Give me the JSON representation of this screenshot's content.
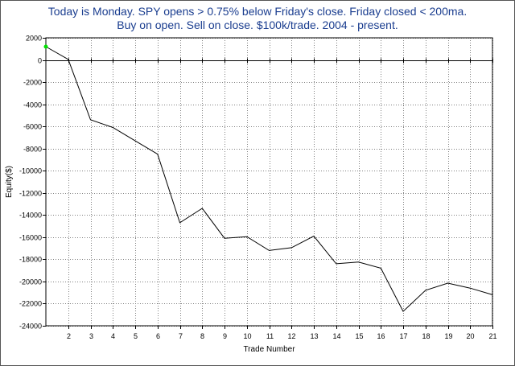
{
  "chart_data": {
    "type": "line",
    "title": "Today is Monday. SPY opens > 0.75% below Friday's close. Friday closed < 200ma.",
    "subtitle": "Buy on open. Sell on close. $100k/trade. 2004 - present.",
    "xlabel": "Trade Number",
    "ylabel": "Equity($)",
    "x_ticks": [
      2,
      3,
      4,
      5,
      6,
      7,
      8,
      9,
      10,
      11,
      12,
      13,
      14,
      15,
      16,
      17,
      18,
      19,
      20,
      21
    ],
    "y_ticks": [
      2000,
      0,
      -2000,
      -4000,
      -6000,
      -8000,
      -10000,
      -12000,
      -14000,
      -16000,
      -18000,
      -20000,
      -22000,
      -24000
    ],
    "xlim": [
      1,
      21
    ],
    "ylim": [
      -24000,
      2000
    ],
    "grid": true,
    "series": [
      {
        "x": [
          1,
          2,
          3,
          4,
          5,
          6,
          7,
          8,
          9,
          10,
          11,
          12,
          13,
          14,
          15,
          16,
          17,
          18,
          19,
          20,
          21
        ],
        "values": [
          1200,
          50,
          -5400,
          -6100,
          -7300,
          -8500,
          -14700,
          -13400,
          -16100,
          -15950,
          -17200,
          -16950,
          -15900,
          -18400,
          -18250,
          -18800,
          -22700,
          -20800,
          -20150,
          -20600,
          -21200
        ],
        "color": "#000000"
      }
    ],
    "start_marker_color": "#00e000",
    "zero_line_color": "#000000"
  }
}
